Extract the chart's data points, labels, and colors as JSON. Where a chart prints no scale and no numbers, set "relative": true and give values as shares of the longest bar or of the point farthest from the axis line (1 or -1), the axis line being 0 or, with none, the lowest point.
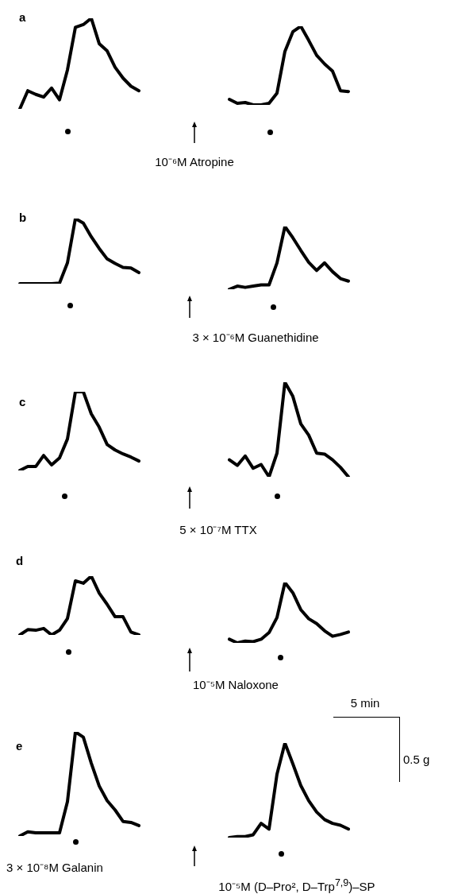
{
  "chart_data": [
    {
      "type": "line",
      "title": "a",
      "relative": true,
      "tick_labels": false,
      "categories": [
        null,
        null,
        null,
        null,
        null,
        null,
        null,
        null,
        null,
        null,
        null,
        null,
        null,
        null,
        null,
        null
      ],
      "series": [
        {
          "color": "#000000",
          "values": [
            0,
            0.2,
            0.16,
            0.13,
            0.23,
            0.1,
            0.43,
            0.9,
            0.93,
            1,
            0.72,
            0.64,
            0.46,
            0.34,
            0.25,
            0.2
          ]
        }
      ],
      "annotations": [
        "10⁻⁶M Atropine"
      ]
    },
    {
      "type": "line",
      "relative": true,
      "tick_labels": false,
      "categories": [
        null,
        null,
        null,
        null,
        null,
        null,
        null,
        null,
        null,
        null,
        null,
        null,
        null,
        null,
        null,
        null
      ],
      "series": [
        {
          "color": "#000000",
          "values": [
            0.07,
            0.02,
            0.03,
            0,
            0,
            0.02,
            0.15,
            0.68,
            0.93,
            1,
            0.82,
            0.63,
            0.52,
            0.43,
            0.18,
            0.17
          ]
        }
      ]
    },
    {
      "type": "line",
      "title": "b",
      "relative": true,
      "tick_labels": false,
      "categories": [
        null,
        null,
        null,
        null,
        null,
        null,
        null,
        null,
        null,
        null,
        null,
        null,
        null,
        null,
        null,
        null
      ],
      "series": [
        {
          "color": "#000000",
          "values": [
            0,
            0,
            0,
            0,
            0,
            0.01,
            0.32,
            1,
            0.93,
            0.72,
            0.54,
            0.38,
            0.31,
            0.25,
            0.24,
            0.17
          ]
        }
      ],
      "annotations": [
        "3 × 10⁻⁶M Guanethidine"
      ]
    },
    {
      "type": "line",
      "relative": true,
      "tick_labels": false,
      "categories": [
        null,
        null,
        null,
        null,
        null,
        null,
        null,
        null,
        null,
        null,
        null,
        null,
        null,
        null,
        null,
        null
      ],
      "series": [
        {
          "color": "#000000",
          "values": [
            0,
            0.05,
            0.03,
            0.05,
            0.07,
            0.07,
            0.42,
            1,
            0.82,
            0.62,
            0.43,
            0.3,
            0.42,
            0.28,
            0.17,
            0.13
          ]
        }
      ]
    },
    {
      "type": "line",
      "title": "c",
      "relative": true,
      "tick_labels": false,
      "categories": [
        null,
        null,
        null,
        null,
        null,
        null,
        null,
        null,
        null,
        null,
        null,
        null,
        null,
        null,
        null,
        null
      ],
      "series": [
        {
          "color": "#000000",
          "values": [
            0,
            0.05,
            0.05,
            0.19,
            0.07,
            0.16,
            0.4,
            1,
            1,
            0.72,
            0.55,
            0.33,
            0.26,
            0.21,
            0.17,
            0.12
          ]
        }
      ],
      "annotations": [
        "5 × 10⁻⁷M TTX"
      ]
    },
    {
      "type": "line",
      "relative": true,
      "tick_labels": false,
      "categories": [
        null,
        null,
        null,
        null,
        null,
        null,
        null,
        null,
        null,
        null,
        null,
        null,
        null,
        null,
        null,
        null
      ],
      "series": [
        {
          "color": "#000000",
          "values": [
            0.18,
            0.12,
            0.22,
            0.09,
            0.13,
            0,
            0.25,
            1,
            0.85,
            0.56,
            0.44,
            0.25,
            0.24,
            0.18,
            0.1,
            0
          ]
        }
      ]
    },
    {
      "type": "line",
      "title": "d",
      "relative": true,
      "tick_labels": false,
      "categories": [
        null,
        null,
        null,
        null,
        null,
        null,
        null,
        null,
        null,
        null,
        null,
        null,
        null,
        null,
        null,
        null
      ],
      "series": [
        {
          "color": "#000000",
          "values": [
            0,
            0.09,
            0.08,
            0.11,
            0,
            0.08,
            0.28,
            0.92,
            0.88,
            1,
            0.71,
            0.52,
            0.31,
            0.31,
            0.05,
            0
          ]
        }
      ],
      "annotations": [
        "10⁻⁵M Naloxone"
      ]
    },
    {
      "type": "line",
      "relative": true,
      "tick_labels": false,
      "categories": [
        null,
        null,
        null,
        null,
        null,
        null,
        null,
        null,
        null,
        null,
        null,
        null,
        null,
        null,
        null,
        null
      ],
      "series": [
        {
          "color": "#000000",
          "values": [
            0.06,
            0,
            0.03,
            0.02,
            0.06,
            0.17,
            0.42,
            1,
            0.83,
            0.55,
            0.4,
            0.32,
            0.2,
            0.11,
            0.14,
            0.18
          ]
        }
      ]
    },
    {
      "type": "line",
      "title": "e",
      "relative": true,
      "tick_labels": false,
      "categories": [
        null,
        null,
        null,
        null,
        null,
        null,
        null,
        null,
        null,
        null,
        null,
        null,
        null,
        null,
        null,
        null
      ],
      "series": [
        {
          "color": "#000000",
          "values": [
            0,
            0.04,
            0.03,
            0.03,
            0.03,
            0.03,
            0.33,
            1,
            0.95,
            0.7,
            0.48,
            0.34,
            0.25,
            0.14,
            0.13,
            0.1
          ]
        }
      ],
      "annotations": [
        "3 × 10⁻⁸M Galanin"
      ]
    },
    {
      "type": "line",
      "relative": true,
      "tick_labels": false,
      "categories": [
        null,
        null,
        null,
        null,
        null,
        null,
        null,
        null,
        null,
        null,
        null,
        null,
        null,
        null,
        null,
        null
      ],
      "series": [
        {
          "color": "#000000",
          "values": [
            0,
            0.01,
            0.01,
            0.03,
            0.15,
            0.09,
            0.67,
            1,
            0.78,
            0.55,
            0.39,
            0.27,
            0.19,
            0.15,
            0.13,
            0.09
          ]
        }
      ],
      "annotations": [
        "10⁻⁵M (D–Pro², D–Trp$^{7,9}$)–SP",
        "5 min",
        "0.5 g"
      ]
    }
  ]
}
